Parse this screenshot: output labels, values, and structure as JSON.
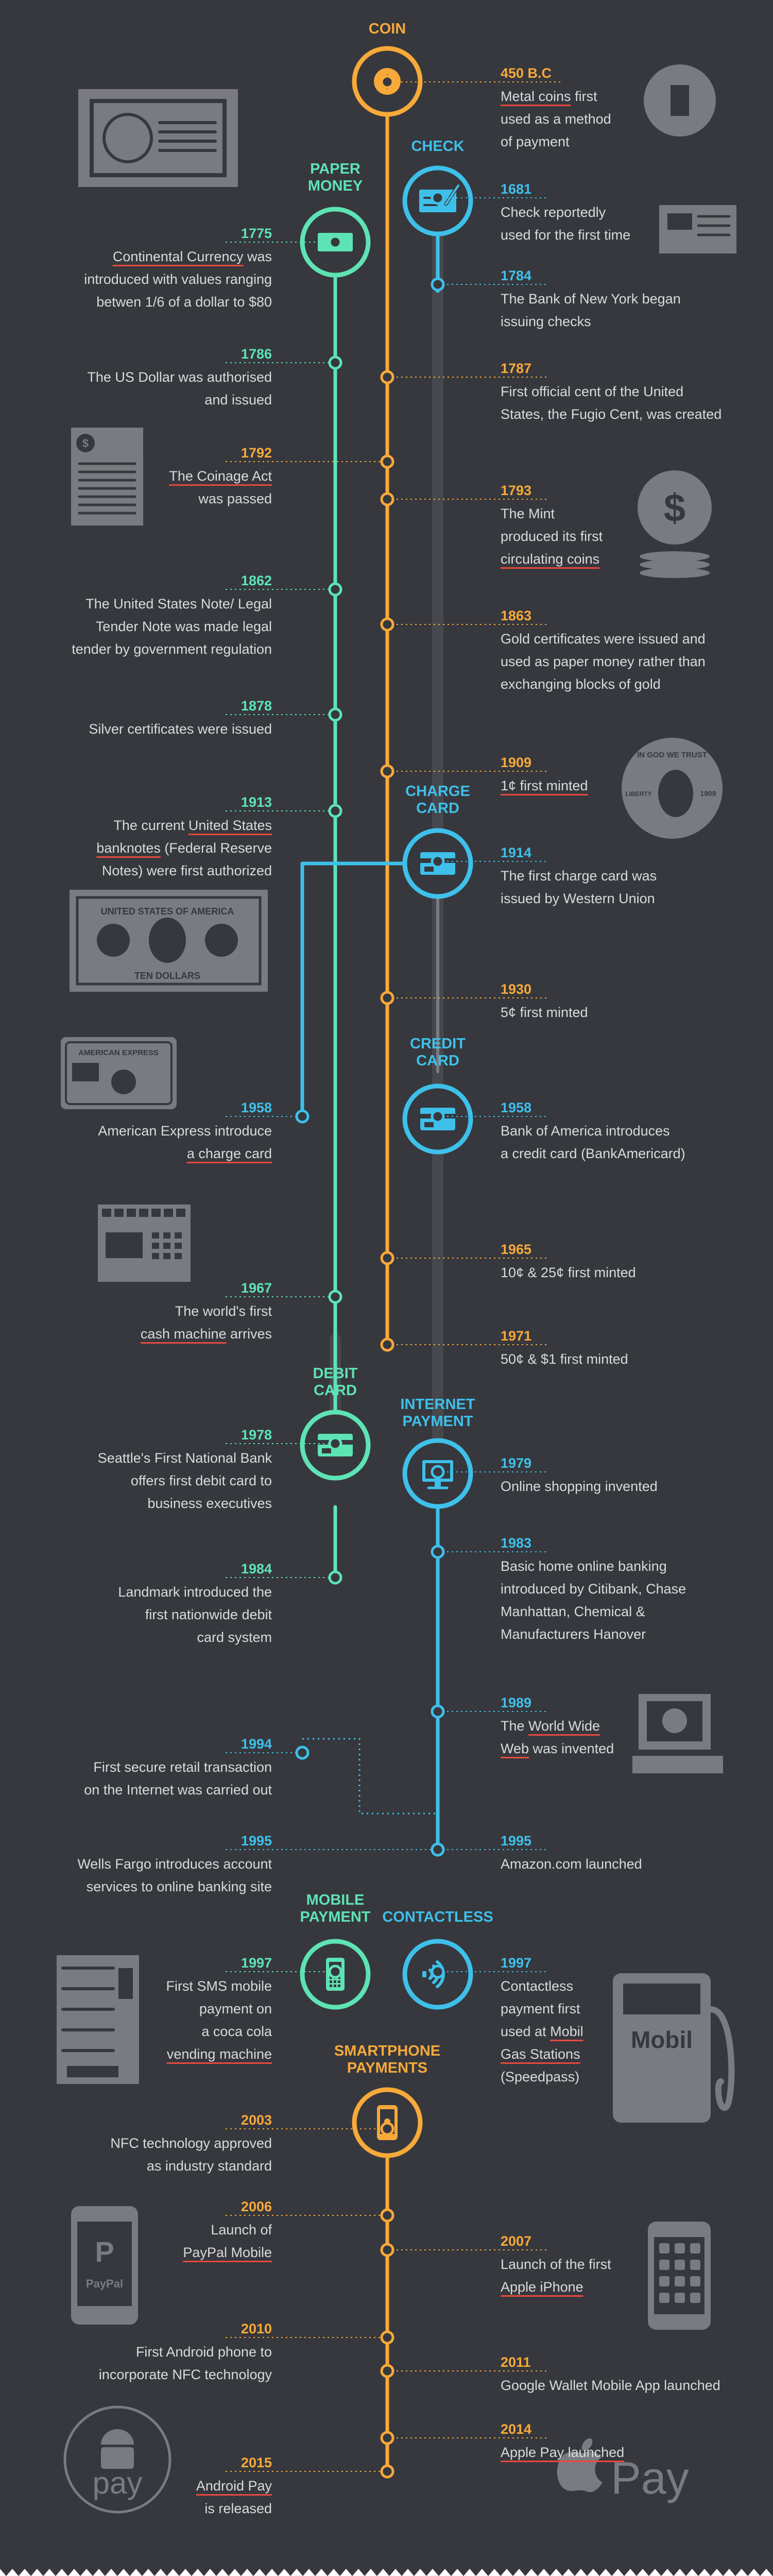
{
  "colors": {
    "background": "#36383d",
    "coin": "#f7a93a",
    "paper": "#5ee3b4",
    "check": "#3ec0ea",
    "gray": "#7a7b80",
    "underline": "#e84a3e",
    "text": "#d9dadc"
  },
  "icons": {
    "coin": "dollar-coin-icon",
    "paper": "banknote-icon",
    "check": "check-icon",
    "charge": "charge-card-icon",
    "credit": "credit-card-icon",
    "debit": "debit-card-icon",
    "internet": "monitor-icon",
    "mobile": "phone-icon",
    "contactless": "contactless-icon",
    "smartphone": "smartphone-icon"
  },
  "labels": {
    "coin": "COIN",
    "paper": [
      "PAPER",
      "MONEY"
    ],
    "check": "CHECK",
    "charge": [
      "CHARGE",
      "CARD"
    ],
    "credit": [
      "CREDIT",
      "CARD"
    ],
    "debit": [
      "DEBIT",
      "CARD"
    ],
    "internet": [
      "INTERNET",
      "PAYMENT"
    ],
    "mobile": [
      "MOBILE",
      "PAYMENT"
    ],
    "contactless": "CONTACTLESS",
    "smartphone": [
      "SMARTPHONE",
      "PAYMENTS"
    ]
  },
  "events": [
    {
      "year": "450 B.C",
      "lines": [
        [
          {
            "t": "Metal coins",
            "u": true
          },
          {
            "t": " first"
          }
        ],
        [
          {
            "t": "used as a method"
          }
        ],
        [
          {
            "t": "of payment"
          }
        ]
      ]
    },
    {
      "year": "1681",
      "lines": [
        [
          {
            "t": "Check reportedly"
          }
        ],
        [
          {
            "t": "used for the first time"
          }
        ]
      ]
    },
    {
      "year": "1775",
      "lines": [
        [
          {
            "t": "Continental Currency",
            "u": true
          },
          {
            "t": " was"
          }
        ],
        [
          {
            "t": "introduced with values ranging"
          }
        ],
        [
          {
            "t": "betwen 1/6 of a dollar to $80"
          }
        ]
      ]
    },
    {
      "year": "1784",
      "lines": [
        [
          {
            "t": "The Bank of New York began"
          }
        ],
        [
          {
            "t": "issuing checks"
          }
        ]
      ]
    },
    {
      "year": "1786",
      "lines": [
        [
          {
            "t": "The US Dollar was authorised"
          }
        ],
        [
          {
            "t": "and issued"
          }
        ]
      ]
    },
    {
      "year": "1787",
      "lines": [
        [
          {
            "t": "First official cent of the United"
          }
        ],
        [
          {
            "t": "States, the Fugio Cent, was created"
          }
        ]
      ]
    },
    {
      "year": "1792",
      "lines": [
        [
          {
            "t": "The Coinage Act",
            "u": true
          }
        ],
        [
          {
            "t": "was passed"
          }
        ]
      ]
    },
    {
      "year": "1793",
      "lines": [
        [
          {
            "t": "The Mint"
          }
        ],
        [
          {
            "t": "produced its first"
          }
        ],
        [
          {
            "t": "circulating coins",
            "u": true
          }
        ]
      ]
    },
    {
      "year": "1862",
      "lines": [
        [
          {
            "t": "The United States Note/ Legal"
          }
        ],
        [
          {
            "t": "Tender Note was made legal"
          }
        ],
        [
          {
            "t": "tender by government regulation"
          }
        ]
      ]
    },
    {
      "year": "1863",
      "lines": [
        [
          {
            "t": "Gold certificates were issued and"
          }
        ],
        [
          {
            "t": "used as paper money rather than"
          }
        ],
        [
          {
            "t": "exchanging blocks of gold"
          }
        ]
      ]
    },
    {
      "year": "1878",
      "lines": [
        [
          {
            "t": "Silver certificates were issued"
          }
        ]
      ]
    },
    {
      "year": "1909",
      "lines": [
        [
          {
            "t": "1¢ first minted",
            "u": true
          }
        ]
      ]
    },
    {
      "year": "1913",
      "lines": [
        [
          {
            "t": "The current "
          },
          {
            "t": "United States",
            "u": true
          }
        ],
        [
          {
            "t": "banknotes",
            "u": true
          },
          {
            "t": " (Federal Reserve"
          }
        ],
        [
          {
            "t": "Notes) were first authorized"
          }
        ]
      ]
    },
    {
      "year": "1914",
      "lines": [
        [
          {
            "t": "The first charge card was"
          }
        ],
        [
          {
            "t": "issued by Western Union"
          }
        ]
      ]
    },
    {
      "year": "1930",
      "lines": [
        [
          {
            "t": "5¢ first minted"
          }
        ]
      ]
    },
    {
      "year": "1958",
      "lines": [
        [
          {
            "t": "American Express introduce"
          }
        ],
        [
          {
            "t": "a charge card",
            "u": true
          }
        ]
      ]
    },
    {
      "year": "1958",
      "lines": [
        [
          {
            "t": "Bank of America introduces"
          }
        ],
        [
          {
            "t": "a credit card (BankAmericard)"
          }
        ]
      ]
    },
    {
      "year": "1965",
      "lines": [
        [
          {
            "t": "10¢ & 25¢ first minted"
          }
        ]
      ]
    },
    {
      "year": "1967",
      "lines": [
        [
          {
            "t": "The world's first"
          }
        ],
        [
          {
            "t": "cash machine",
            "u": true
          },
          {
            "t": " arrives"
          }
        ]
      ]
    },
    {
      "year": "1971",
      "lines": [
        [
          {
            "t": "50¢ & $1 first minted"
          }
        ]
      ]
    },
    {
      "year": "1978",
      "lines": [
        [
          {
            "t": "Seattle's First National Bank"
          }
        ],
        [
          {
            "t": "offers first debit card to"
          }
        ],
        [
          {
            "t": "business executives"
          }
        ]
      ]
    },
    {
      "year": "1979",
      "lines": [
        [
          {
            "t": "Online shopping invented"
          }
        ]
      ]
    },
    {
      "year": "1983",
      "lines": [
        [
          {
            "t": "Basic home online banking"
          }
        ],
        [
          {
            "t": "introduced by Citibank, Chase"
          }
        ],
        [
          {
            "t": "Manhattan, Chemical &"
          }
        ],
        [
          {
            "t": "Manufacturers Hanover"
          }
        ]
      ]
    },
    {
      "year": "1984",
      "lines": [
        [
          {
            "t": "Landmark introduced the"
          }
        ],
        [
          {
            "t": "first nationwide debit"
          }
        ],
        [
          {
            "t": "card system"
          }
        ]
      ]
    },
    {
      "year": "1989",
      "lines": [
        [
          {
            "t": "The "
          },
          {
            "t": "World Wide",
            "u": true
          }
        ],
        [
          {
            "t": "Web",
            "u": true
          },
          {
            "t": " was invented"
          }
        ]
      ]
    },
    {
      "year": "1994",
      "lines": [
        [
          {
            "t": "First secure retail transaction"
          }
        ],
        [
          {
            "t": "on the Internet was carried out"
          }
        ]
      ]
    },
    {
      "year": "1995",
      "lines": [
        [
          {
            "t": "Wells Fargo introduces account"
          }
        ],
        [
          {
            "t": "services to online banking site"
          }
        ]
      ]
    },
    {
      "year": "1995",
      "lines": [
        [
          {
            "t": "Amazon.com launched"
          }
        ]
      ]
    },
    {
      "year": "1997",
      "lines": [
        [
          {
            "t": "First SMS mobile"
          }
        ],
        [
          {
            "t": "payment on"
          }
        ],
        [
          {
            "t": "a coca cola"
          }
        ],
        [
          {
            "t": "vending machine",
            "u": true
          }
        ]
      ]
    },
    {
      "year": "1997",
      "lines": [
        [
          {
            "t": "Contactless"
          }
        ],
        [
          {
            "t": "payment first"
          }
        ],
        [
          {
            "t": "used at "
          },
          {
            "t": "Mobil",
            "u": true
          }
        ],
        [
          {
            "t": "Gas Stations",
            "u": true
          }
        ],
        [
          {
            "t": "(Speedpass)"
          }
        ]
      ]
    },
    {
      "year": "2003",
      "lines": [
        [
          {
            "t": "NFC technology approved"
          }
        ],
        [
          {
            "t": "as industry standard"
          }
        ]
      ]
    },
    {
      "year": "2006",
      "lines": [
        [
          {
            "t": "Launch of"
          }
        ],
        [
          {
            "t": "PayPal Mobile",
            "u": true
          }
        ]
      ]
    },
    {
      "year": "2007",
      "lines": [
        [
          {
            "t": "Launch of the first"
          }
        ],
        [
          {
            "t": "Apple iPhone",
            "u": true
          }
        ]
      ]
    },
    {
      "year": "2010",
      "lines": [
        [
          {
            "t": "First Android phone to"
          }
        ],
        [
          {
            "t": "incorporate NFC technology"
          }
        ]
      ]
    },
    {
      "year": "2011",
      "lines": [
        [
          {
            "t": "Google Wallet Mobile App launched"
          }
        ]
      ]
    },
    {
      "year": "2014",
      "lines": [
        [
          {
            "t": "Apple Pay launched",
            "u": true
          }
        ]
      ]
    },
    {
      "year": "2015",
      "lines": [
        [
          {
            "t": "Android Pay",
            "u": true
          }
        ],
        [
          {
            "t": "is released"
          }
        ]
      ]
    }
  ],
  "artwork": {
    "banknote_header": "UNITED STATES OF AMERICA",
    "banknote_footer": "TEN DOLLARS",
    "amex": "AMERICAN EXPRESS",
    "coin_motto": "IN GOD WE TRUST",
    "coin_liberty": "LIBERTY",
    "coin_year": "1909",
    "mobil": "Mobil",
    "paypal": "PayPal",
    "android_pay": "pay",
    "apple_pay": "Pay"
  }
}
